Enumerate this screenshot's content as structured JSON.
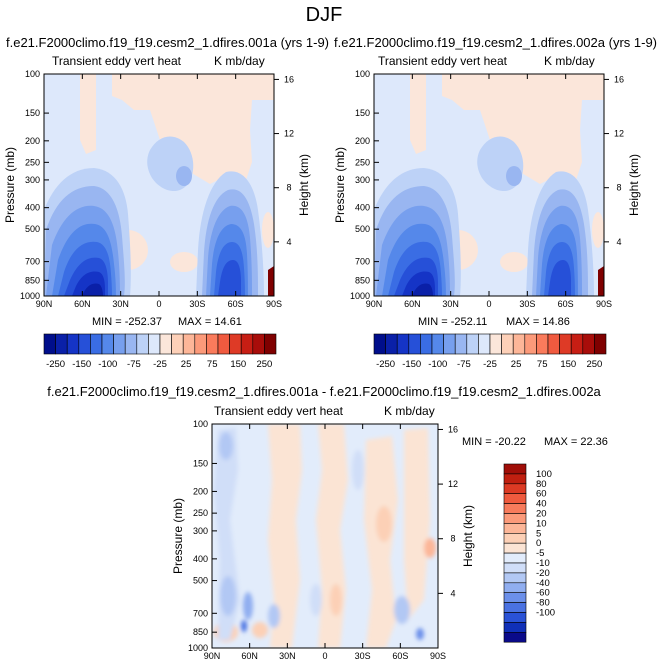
{
  "page_title": "DJF",
  "colors": {
    "neg": [
      "#000e8b",
      "#0a20a8",
      "#1534c6",
      "#2650d8",
      "#3a6de4",
      "#5588ea",
      "#779fee",
      "#99b6f1",
      "#bdd2f7",
      "#dde8fb"
    ],
    "pos": [
      "#fbe6da",
      "#fdd0b8",
      "#fdb698",
      "#fc9a7a",
      "#fa7b5c",
      "#f05a3f",
      "#de3a26",
      "#c71e14",
      "#a80d0a",
      "#7f0000"
    ],
    "diff": [
      "#0a0a8a",
      "#1030b8",
      "#2a52d6",
      "#4a72e2",
      "#6c90ea",
      "#90aef0",
      "#b2c8f4",
      "#d0def8",
      "#e2ecfb",
      "#fbe4d4",
      "#fcd0b6",
      "#fcb698",
      "#fb9a7a",
      "#f77b5c",
      "#ef5a3e",
      "#dc3a24",
      "#c01f10",
      "#a00e08"
    ]
  },
  "chart_data": [
    {
      "type": "heatmap",
      "title": "f.e21.F2000climo.f19_f19.cesm2_1.dfires.001a (yrs 1-9)",
      "left_label": "Transient eddy vert heat",
      "right_label": "K mb/day",
      "xlabel": "",
      "ylabel": "Pressure (mb)",
      "ylabel_right": "Height (km)",
      "x_ticks": [
        "90N",
        "60N",
        "30N",
        "0",
        "30S",
        "60S",
        "90S"
      ],
      "y_ticks": [
        "100",
        "150",
        "200",
        "250",
        "300",
        "400",
        "500",
        "700",
        "850",
        "1000"
      ],
      "height_ticks": [
        "16",
        "12",
        "8",
        "4"
      ],
      "min_label": "MIN = -252.37",
      "max_label": "MAX = 14.61",
      "stats": {
        "min": -252.37,
        "max": 14.61
      },
      "colorbar_labels": [
        "-250",
        "-150",
        "-100",
        "-75",
        "-25",
        "25",
        "75",
        "150",
        "250"
      ]
    },
    {
      "type": "heatmap",
      "title": "f.e21.F2000climo.f19_f19.cesm2_1.dfires.002a (yrs 1-9)",
      "left_label": "Transient eddy vert heat",
      "right_label": "K mb/day",
      "xlabel": "",
      "ylabel": "Pressure (mb)",
      "ylabel_right": "Height (km)",
      "x_ticks": [
        "90N",
        "60N",
        "30N",
        "0",
        "30S",
        "60S",
        "90S"
      ],
      "y_ticks": [
        "100",
        "150",
        "200",
        "250",
        "300",
        "400",
        "500",
        "700",
        "850",
        "1000"
      ],
      "height_ticks": [
        "16",
        "12",
        "8",
        "4"
      ],
      "min_label": "MIN = -252.11",
      "max_label": "MAX = 14.86",
      "stats": {
        "min": -252.11,
        "max": 14.86
      },
      "colorbar_labels": [
        "-250",
        "-150",
        "-100",
        "-75",
        "-25",
        "25",
        "75",
        "150",
        "250"
      ]
    },
    {
      "type": "heatmap",
      "title": "f.e21.F2000climo.f19_f19.cesm2_1.dfires.001a - f.e21.F2000climo.f19_f19.cesm2_1.dfires.002a",
      "left_label": "Transient eddy vert heat",
      "right_label": "K mb/day",
      "xlabel": "",
      "ylabel": "Pressure (mb)",
      "ylabel_right": "Height (km)",
      "x_ticks": [
        "90N",
        "60N",
        "30N",
        "0",
        "30S",
        "60S",
        "90S"
      ],
      "y_ticks": [
        "100",
        "150",
        "200",
        "250",
        "300",
        "400",
        "500",
        "700",
        "850",
        "1000"
      ],
      "height_ticks": [
        "16",
        "12",
        "8",
        "4"
      ],
      "min_label": "MIN = -20.22",
      "max_label": "MAX = 22.36",
      "stats": {
        "min": -20.22,
        "max": 22.36
      },
      "colorbar_labels": [
        "100",
        "80",
        "60",
        "40",
        "20",
        "10",
        "5",
        "0",
        "-5",
        "-10",
        "-20",
        "-40",
        "-60",
        "-80",
        "-100"
      ]
    }
  ]
}
